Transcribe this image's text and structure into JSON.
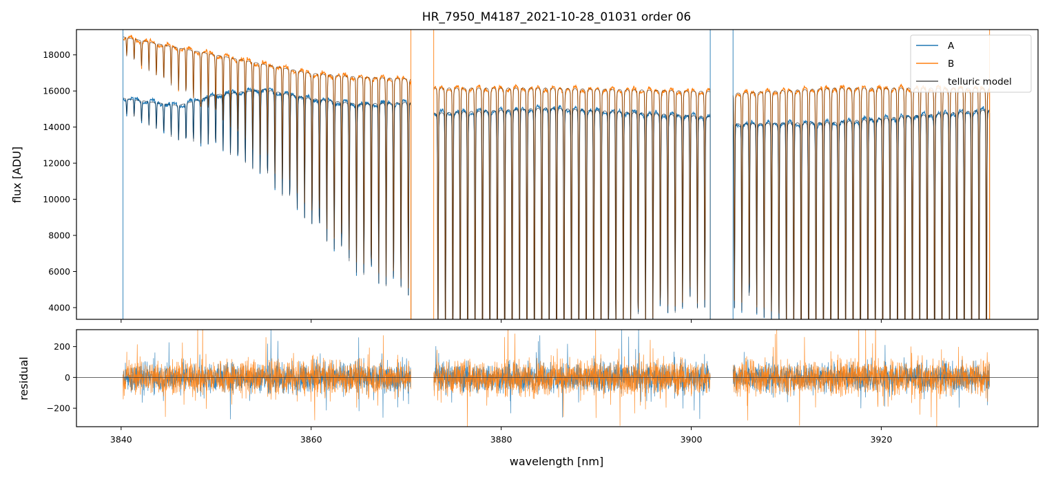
{
  "chart_data": [
    {
      "type": "line",
      "panel": "top",
      "title": "HR_7950_M4187_2021-10-28_01031  order 06",
      "ylabel": "flux [ADU]",
      "xlim": [
        3835.3,
        3936.5
      ],
      "ylim": [
        3350,
        19400
      ],
      "yticks": [
        4000,
        6000,
        8000,
        10000,
        12000,
        14000,
        16000,
        18000
      ],
      "grid": false,
      "legend": {
        "placement": "upper right",
        "entries": [
          "A",
          "B",
          "telluric model"
        ]
      },
      "segments": [
        [
          3840.2,
          3870.5
        ],
        [
          3872.9,
          3902.0
        ],
        [
          3904.4,
          3931.4
        ]
      ],
      "line_spacing_nm": 0.78,
      "series": [
        {
          "name": "A",
          "color": "#1f77b4",
          "continuum_knots": [
            [
              3840.2,
              15600
            ],
            [
              3846,
              15200
            ],
            [
              3850,
              15800
            ],
            [
              3855,
              16100
            ],
            [
              3860,
              15600
            ],
            [
              3865,
              15300
            ],
            [
              3870.5,
              15400
            ],
            [
              3872.9,
              14800
            ],
            [
              3885,
              15100
            ],
            [
              3902.0,
              14600
            ],
            [
              3904.4,
              14200
            ],
            [
              3915,
              14300
            ],
            [
              3931.4,
              15000
            ]
          ]
        },
        {
          "name": "B",
          "color": "#ff7f0e",
          "continuum_knots": [
            [
              3840.2,
              19000
            ],
            [
              3845,
              18500
            ],
            [
              3850,
              18000
            ],
            [
              3855,
              17500
            ],
            [
              3860,
              17000
            ],
            [
              3865,
              16800
            ],
            [
              3870.5,
              16700
            ],
            [
              3872.9,
              16200
            ],
            [
              3885,
              16200
            ],
            [
              3902.0,
              16000
            ],
            [
              3904.4,
              15900
            ],
            [
              3915,
              16200
            ],
            [
              3931.4,
              16200
            ]
          ]
        },
        {
          "name": "telluric model",
          "color": "#000000"
        }
      ],
      "line_depth_knots": [
        [
          3840.2,
          0.05
        ],
        [
          3850,
          0.18
        ],
        [
          3855,
          0.3
        ],
        [
          3860,
          0.45
        ],
        [
          3865,
          0.62
        ],
        [
          3870.5,
          0.7
        ],
        [
          3872.9,
          0.85
        ],
        [
          3876,
          0.99
        ],
        [
          3888,
          0.99
        ],
        [
          3893,
          0.85
        ],
        [
          3898,
          0.75
        ],
        [
          3902.0,
          0.72
        ],
        [
          3904.4,
          0.72
        ],
        [
          3908,
          0.76
        ],
        [
          3912,
          0.98
        ],
        [
          3925,
          0.99
        ],
        [
          3931.4,
          0.99
        ]
      ]
    },
    {
      "type": "line",
      "panel": "bottom",
      "xlabel": "wavelength [nm]",
      "ylabel": "residual",
      "xlim": [
        3835.3,
        3936.5
      ],
      "ylim": [
        -320,
        310
      ],
      "xticks": [
        3840,
        3860,
        3880,
        3900,
        3920
      ],
      "yticks": [
        -200,
        0,
        200
      ],
      "reference_line": 0,
      "grid": false,
      "series": [
        {
          "name": "A",
          "color": "#1f77b4",
          "noise_amplitude": 100
        },
        {
          "name": "B",
          "color": "#ff7f0e",
          "noise_amplitude": 120
        }
      ]
    }
  ]
}
